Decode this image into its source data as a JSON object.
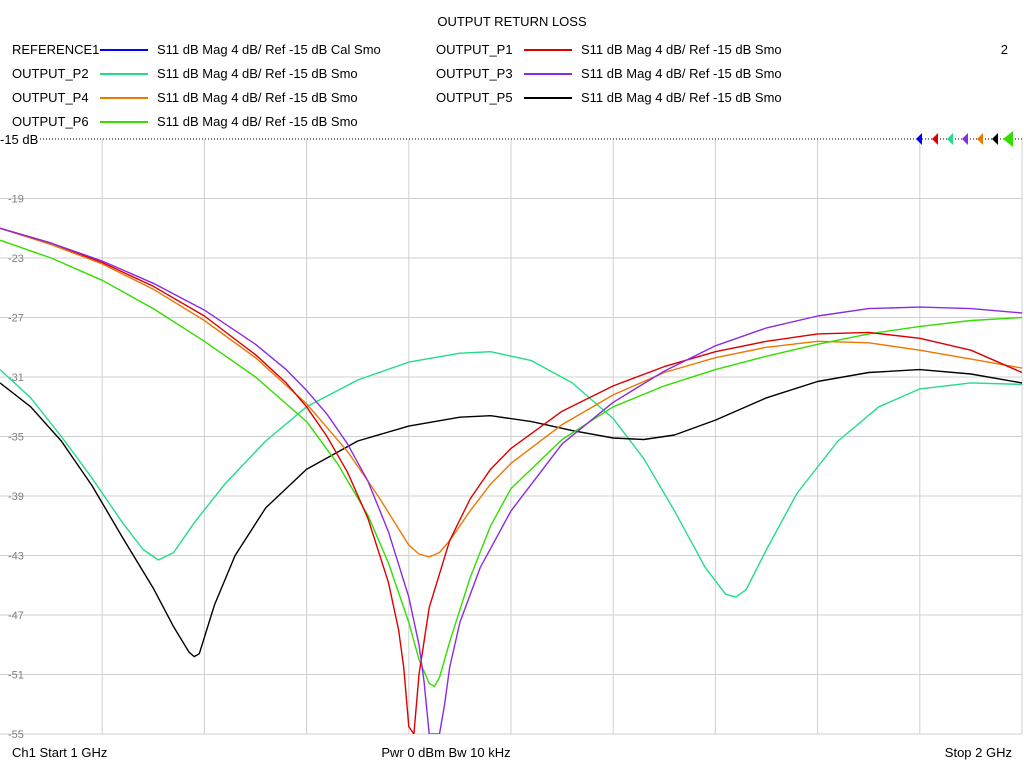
{
  "header": {
    "title": "OUTPUT RETURN LOSS",
    "channel_number": "2"
  },
  "reference_label": "-15 dB",
  "footer": {
    "start": "Ch1  Start  1 GHz",
    "center": "Pwr  0 dBm  Bw  10 kHz",
    "stop": "Stop  2 GHz"
  },
  "chart_data": {
    "type": "line",
    "title": "OUTPUT RETURN LOSS",
    "xlabel": "",
    "ylabel": "",
    "xlim": [
      1,
      2
    ],
    "x_unit": "GHz",
    "ylim": [
      -55,
      -15
    ],
    "y_reference": -15,
    "y_scale_per_div": 4,
    "grid": true,
    "legend_placement": "top",
    "ytick_labels": [
      "-19",
      "-23",
      "-27",
      "-31",
      "-35",
      "-39",
      "-43",
      "-47",
      "-51",
      "-55"
    ],
    "yticks": [
      -19,
      -23,
      -27,
      -31,
      -35,
      -39,
      -43,
      -47,
      -51,
      -55
    ],
    "series": [
      {
        "name": "REFERENCE1",
        "desc": "S11  dB Mag  4 dB/ Ref -15 dB  Cal Smo",
        "color": "#0000ff",
        "x": [
          1.0
        ],
        "y": [
          -21.0
        ]
      },
      {
        "name": "OUTPUT_P1",
        "desc": "S11  dB Mag  4 dB/ Ref -15 dB  Smo",
        "color": "#dd0000",
        "x": [
          1.0,
          1.05,
          1.1,
          1.15,
          1.2,
          1.25,
          1.28,
          1.3,
          1.32,
          1.34,
          1.36,
          1.38,
          1.39,
          1.395,
          1.4,
          1.405,
          1.41,
          1.42,
          1.44,
          1.46,
          1.48,
          1.5,
          1.55,
          1.6,
          1.65,
          1.7,
          1.75,
          1.8,
          1.85,
          1.9,
          1.95,
          2.0
        ],
        "y": [
          -21.0,
          -22.0,
          -23.3,
          -24.9,
          -26.9,
          -29.5,
          -31.4,
          -33.0,
          -35.0,
          -37.4,
          -40.5,
          -44.8,
          -48.0,
          -50.5,
          -54.5,
          -55.0,
          -51.0,
          -46.5,
          -42.0,
          -39.2,
          -37.2,
          -35.8,
          -33.3,
          -31.6,
          -30.3,
          -29.3,
          -28.6,
          -28.1,
          -28.0,
          -28.4,
          -29.2,
          -30.7
        ]
      },
      {
        "name": "OUTPUT_P2",
        "desc": "S11  dB Mag  4 dB/ Ref -15 dB  Smo",
        "color": "#22dd88",
        "x": [
          1.0,
          1.03,
          1.06,
          1.09,
          1.12,
          1.14,
          1.155,
          1.17,
          1.19,
          1.22,
          1.26,
          1.3,
          1.35,
          1.4,
          1.45,
          1.48,
          1.52,
          1.56,
          1.6,
          1.63,
          1.66,
          1.69,
          1.71,
          1.72,
          1.73,
          1.75,
          1.78,
          1.82,
          1.86,
          1.9,
          1.95,
          2.0
        ],
        "y": [
          -30.5,
          -32.4,
          -35.0,
          -37.8,
          -40.8,
          -42.6,
          -43.3,
          -42.8,
          -40.8,
          -38.2,
          -35.3,
          -33.0,
          -31.2,
          -30.0,
          -29.4,
          -29.3,
          -29.9,
          -31.4,
          -33.8,
          -36.5,
          -40.0,
          -43.8,
          -45.6,
          -45.8,
          -45.3,
          -42.6,
          -38.8,
          -35.3,
          -33.0,
          -31.8,
          -31.4,
          -31.5
        ]
      },
      {
        "name": "OUTPUT_P3",
        "desc": "S11  dB Mag  4 dB/ Ref -15 dB  Smo",
        "color": "#8a2be2",
        "x": [
          1.0,
          1.05,
          1.1,
          1.15,
          1.2,
          1.25,
          1.28,
          1.3,
          1.32,
          1.34,
          1.36,
          1.38,
          1.4,
          1.41,
          1.415,
          1.42,
          1.43,
          1.435,
          1.44,
          1.45,
          1.47,
          1.5,
          1.55,
          1.6,
          1.65,
          1.7,
          1.75,
          1.8,
          1.85,
          1.9,
          1.95,
          2.0
        ],
        "y": [
          -21.0,
          -22.0,
          -23.2,
          -24.7,
          -26.5,
          -28.8,
          -30.5,
          -31.9,
          -33.5,
          -35.5,
          -38.0,
          -41.4,
          -45.8,
          -49.0,
          -51.5,
          -55.0,
          -55.0,
          -53.0,
          -50.5,
          -47.5,
          -43.8,
          -40.0,
          -35.5,
          -32.7,
          -30.6,
          -28.9,
          -27.7,
          -26.9,
          -26.4,
          -26.3,
          -26.4,
          -26.7
        ]
      },
      {
        "name": "OUTPUT_P4",
        "desc": "S11  dB Mag  4 dB/ Ref -15 dB  Smo",
        "color": "#ee7700",
        "x": [
          1.0,
          1.05,
          1.1,
          1.15,
          1.2,
          1.25,
          1.3,
          1.34,
          1.37,
          1.39,
          1.4,
          1.41,
          1.42,
          1.43,
          1.44,
          1.46,
          1.48,
          1.5,
          1.55,
          1.6,
          1.65,
          1.7,
          1.75,
          1.8,
          1.85,
          1.9,
          1.95,
          2.0
        ],
        "y": [
          -21.0,
          -22.1,
          -23.4,
          -25.1,
          -27.2,
          -29.7,
          -32.8,
          -36.0,
          -39.0,
          -41.2,
          -42.3,
          -42.9,
          -43.1,
          -42.8,
          -42.0,
          -40.0,
          -38.2,
          -36.8,
          -34.2,
          -32.2,
          -30.7,
          -29.7,
          -29.0,
          -28.6,
          -28.7,
          -29.2,
          -29.8,
          -30.4
        ]
      },
      {
        "name": "OUTPUT_P5",
        "desc": "S11  dB Mag  4 dB/ Ref -15 dB  Smo",
        "color": "#000000",
        "x": [
          1.0,
          1.03,
          1.06,
          1.09,
          1.12,
          1.15,
          1.17,
          1.185,
          1.19,
          1.195,
          1.2,
          1.21,
          1.23,
          1.26,
          1.3,
          1.35,
          1.4,
          1.45,
          1.48,
          1.52,
          1.56,
          1.6,
          1.63,
          1.66,
          1.7,
          1.75,
          1.8,
          1.85,
          1.9,
          1.95,
          2.0
        ],
        "y": [
          -31.4,
          -33.0,
          -35.3,
          -38.3,
          -41.8,
          -45.2,
          -47.8,
          -49.5,
          -49.8,
          -49.6,
          -48.5,
          -46.3,
          -43.0,
          -39.8,
          -37.2,
          -35.3,
          -34.3,
          -33.7,
          -33.6,
          -34.0,
          -34.6,
          -35.1,
          -35.2,
          -34.9,
          -33.9,
          -32.4,
          -31.3,
          -30.7,
          -30.5,
          -30.8,
          -31.4
        ]
      },
      {
        "name": "OUTPUT_P6",
        "desc": "S11  dB Mag  4 dB/ Ref -15 dB  Smo",
        "color": "#33dd00",
        "x": [
          1.0,
          1.05,
          1.1,
          1.15,
          1.2,
          1.25,
          1.3,
          1.33,
          1.36,
          1.38,
          1.4,
          1.41,
          1.42,
          1.425,
          1.43,
          1.44,
          1.46,
          1.48,
          1.5,
          1.55,
          1.6,
          1.65,
          1.7,
          1.75,
          1.8,
          1.85,
          1.9,
          1.95,
          2.0
        ],
        "y": [
          -21.8,
          -23.0,
          -24.5,
          -26.4,
          -28.6,
          -31.0,
          -34.0,
          -36.8,
          -40.3,
          -43.5,
          -47.5,
          -50.0,
          -51.6,
          -51.8,
          -51.2,
          -48.8,
          -44.5,
          -41.0,
          -38.5,
          -35.2,
          -33.0,
          -31.6,
          -30.5,
          -29.6,
          -28.8,
          -28.1,
          -27.6,
          -27.2,
          -27.0
        ]
      }
    ]
  }
}
